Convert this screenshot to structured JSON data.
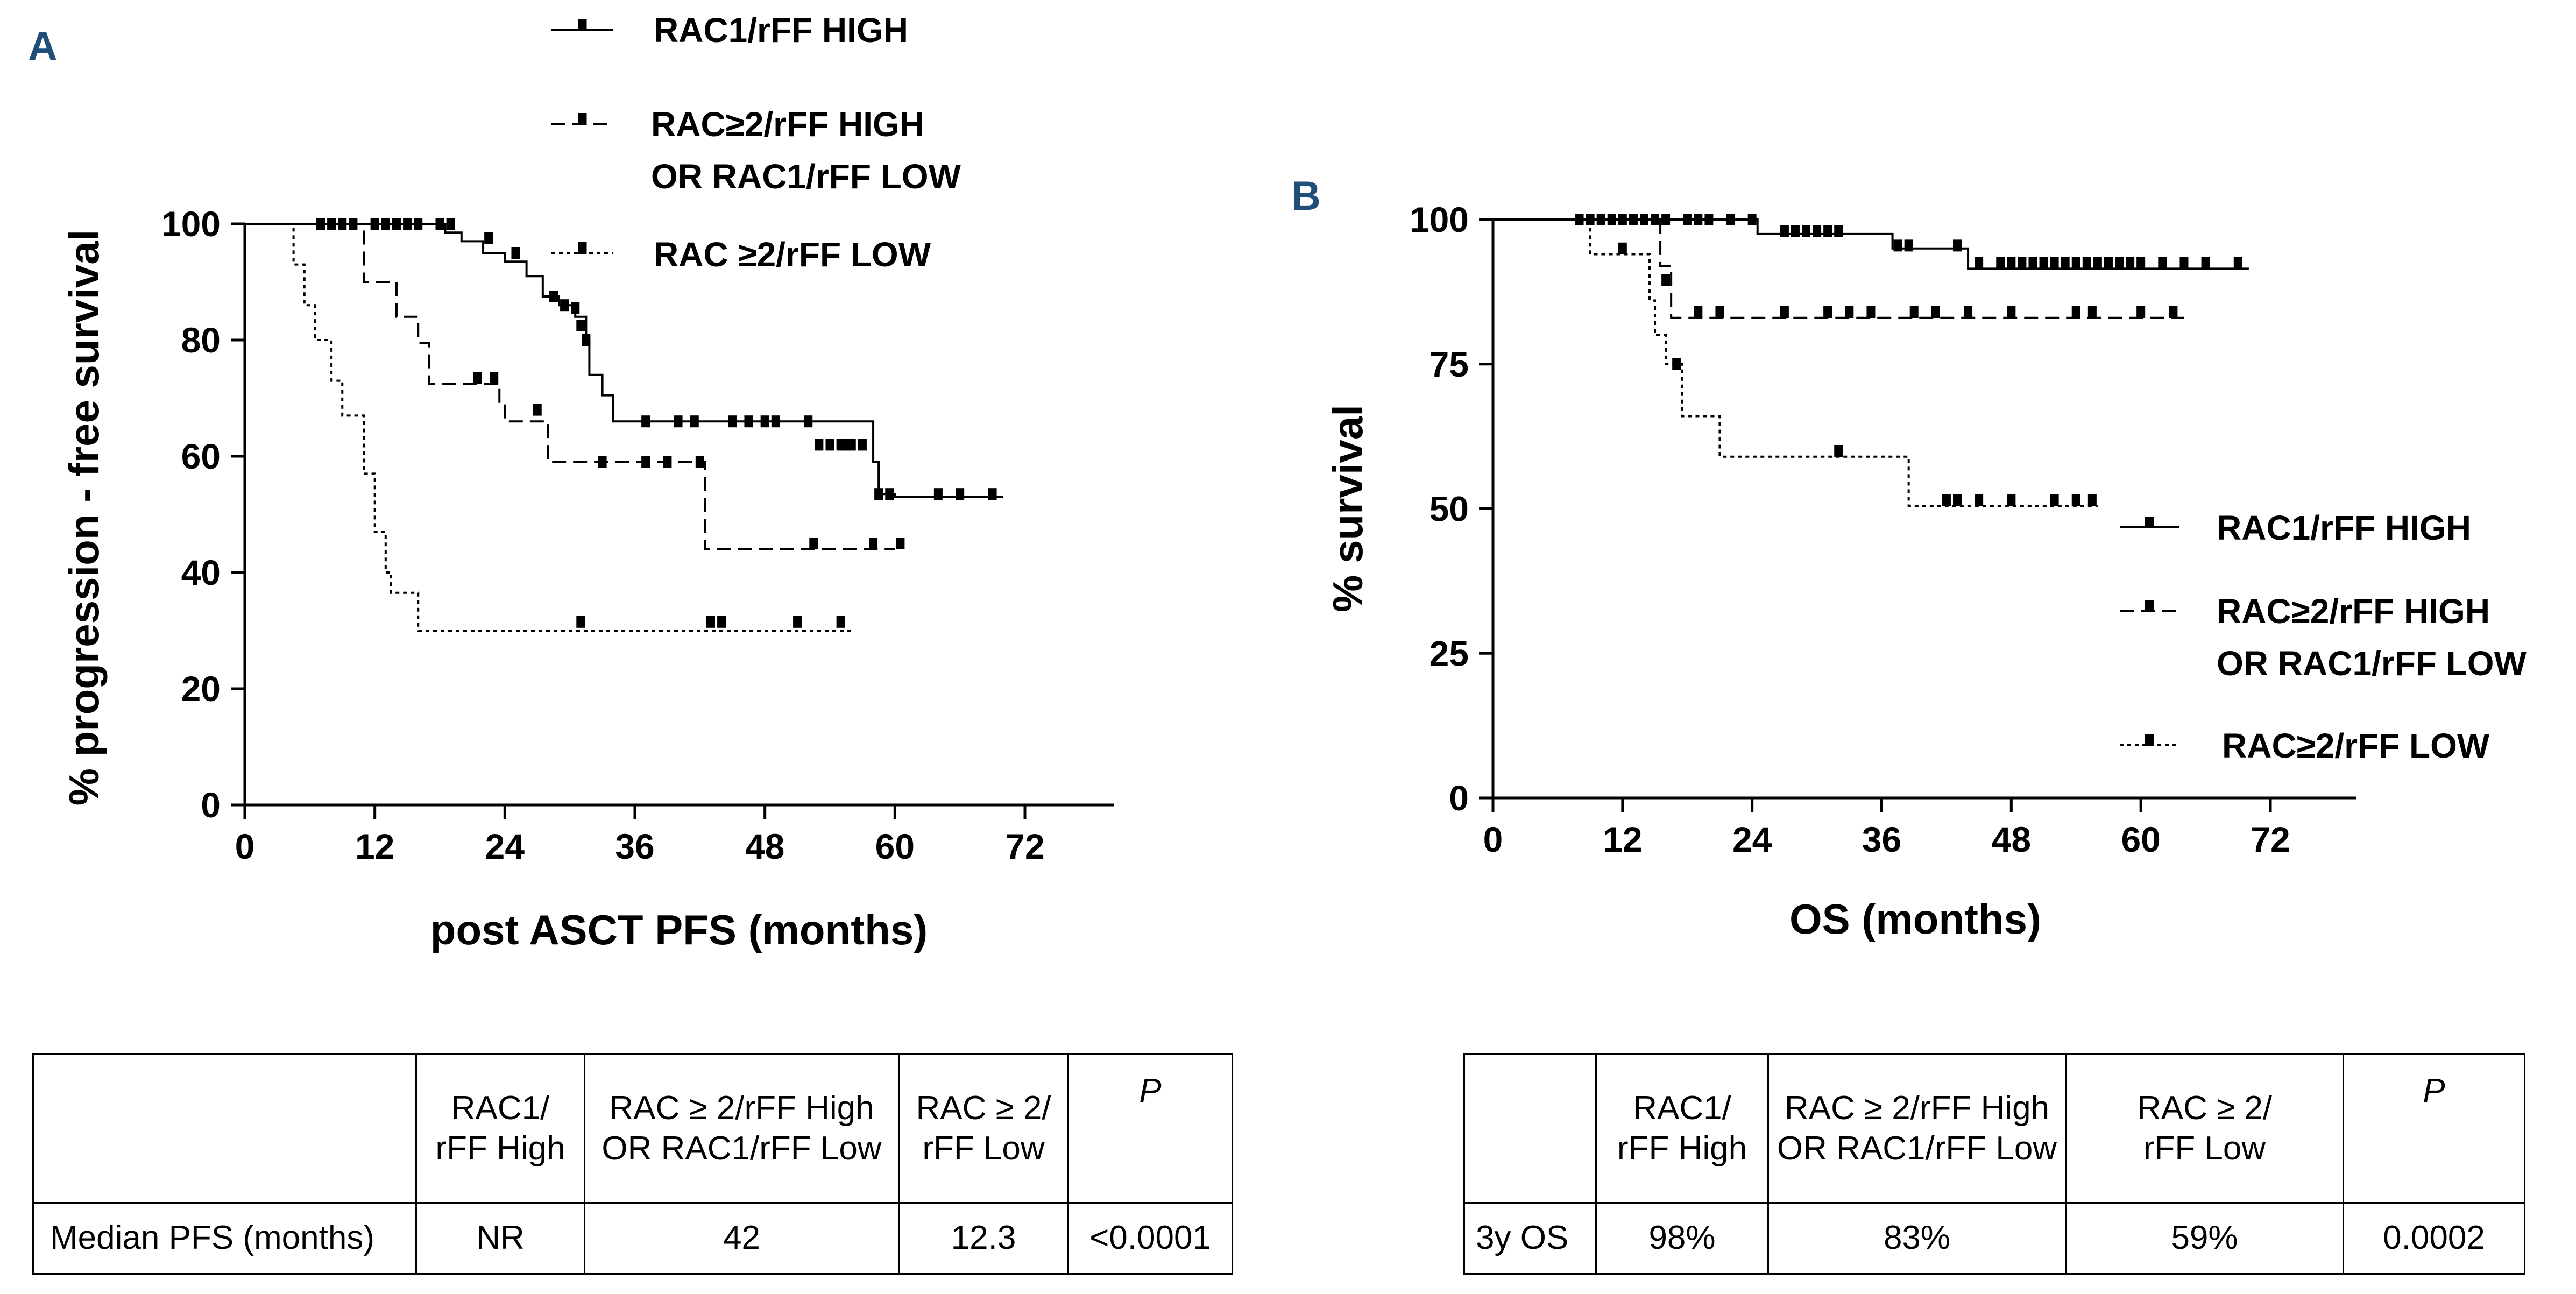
{
  "chart_data": [
    {
      "panel": "A",
      "type": "line",
      "subtype": "kaplan-meier",
      "xlabel": "post ASCT PFS (months)",
      "ylabel": "% progression - free survival",
      "xlim": [
        0,
        80
      ],
      "ylim": [
        0,
        100
      ],
      "xticks": [
        0,
        12,
        24,
        36,
        48,
        60,
        72
      ],
      "yticks": [
        0,
        20,
        40,
        60,
        80,
        100
      ],
      "grid": false,
      "legend_position": "top-center",
      "series": [
        {
          "name": "RAC1/rFF HIGH",
          "dash": "solid",
          "steps": [
            [
              0,
              100
            ],
            [
              18.5,
              98.5
            ],
            [
              20,
              97
            ],
            [
              22,
              95
            ],
            [
              24,
              93.5
            ],
            [
              26,
              91
            ],
            [
              27.5,
              87.5
            ],
            [
              29,
              86
            ],
            [
              30.5,
              84
            ],
            [
              31.5,
              80
            ],
            [
              31.8,
              74
            ],
            [
              33,
              70.5
            ],
            [
              34,
              66
            ],
            [
              58,
              59
            ],
            [
              58.5,
              53.5
            ],
            [
              60,
              53
            ],
            [
              70,
              53
            ]
          ],
          "censored": [
            [
              7,
              100
            ],
            [
              8,
              100
            ],
            [
              9,
              100
            ],
            [
              10,
              100
            ],
            [
              12,
              100
            ],
            [
              13,
              100
            ],
            [
              14,
              100
            ],
            [
              15,
              100
            ],
            [
              16,
              100
            ],
            [
              18,
              100
            ],
            [
              19,
              100
            ],
            [
              22.5,
              97.5
            ],
            [
              25,
              95
            ],
            [
              28.5,
              87.5
            ],
            [
              29.5,
              86
            ],
            [
              30.5,
              85.5
            ],
            [
              31,
              82.5
            ],
            [
              31.5,
              80
            ],
            [
              37,
              66
            ],
            [
              40,
              66
            ],
            [
              41.5,
              66
            ],
            [
              45,
              66
            ],
            [
              46.5,
              66
            ],
            [
              48,
              66
            ],
            [
              49,
              66
            ],
            [
              52,
              66
            ],
            [
              53,
              62
            ],
            [
              54,
              62
            ],
            [
              55,
              62
            ],
            [
              55.5,
              62
            ],
            [
              56,
              62
            ],
            [
              57,
              62
            ],
            [
              58.5,
              53.5
            ],
            [
              59.5,
              53.5
            ],
            [
              64,
              53.5
            ],
            [
              66,
              53.5
            ],
            [
              69,
              53.5
            ]
          ]
        },
        {
          "name": "RAC≥2/rFF HIGH OR RAC1/rFF LOW",
          "dash": "dashed",
          "steps": [
            [
              0,
              100
            ],
            [
              11,
              90
            ],
            [
              14,
              84
            ],
            [
              16,
              79.5
            ],
            [
              17,
              72.5
            ],
            [
              23.5,
              69
            ],
            [
              24,
              66
            ],
            [
              28,
              59
            ],
            [
              42,
              59
            ],
            [
              42.5,
              44
            ],
            [
              60,
              44
            ]
          ],
          "censored": [
            [
              21.5,
              73.5
            ],
            [
              23,
              73.5
            ],
            [
              27,
              68
            ],
            [
              33,
              59
            ],
            [
              37,
              59
            ],
            [
              39,
              59
            ],
            [
              42,
              59
            ],
            [
              52.5,
              45
            ],
            [
              58,
              45
            ],
            [
              60.5,
              45
            ]
          ]
        },
        {
          "name": "RAC ≥2/rFF LOW",
          "dash": "dotted",
          "steps": [
            [
              0,
              100
            ],
            [
              4.5,
              93
            ],
            [
              5.5,
              86
            ],
            [
              6.5,
              80
            ],
            [
              8,
              73
            ],
            [
              9,
              67
            ],
            [
              11,
              57
            ],
            [
              12,
              47
            ],
            [
              13,
              40
            ],
            [
              13.5,
              36.5
            ],
            [
              16,
              30
            ],
            [
              56,
              30
            ]
          ],
          "censored": [
            [
              31,
              31.5
            ],
            [
              43,
              31.5
            ],
            [
              44,
              31.5
            ],
            [
              51,
              31.5
            ],
            [
              55,
              31.5
            ]
          ]
        }
      ]
    },
    {
      "panel": "B",
      "type": "line",
      "subtype": "kaplan-meier",
      "xlabel": "OS (months)",
      "ylabel": "% survival",
      "xlim": [
        0,
        80
      ],
      "ylim": [
        0,
        100
      ],
      "xticks": [
        0,
        12,
        24,
        36,
        48,
        60,
        72
      ],
      "yticks": [
        0,
        25,
        50,
        75,
        100
      ],
      "grid": false,
      "legend_position": "bottom-right",
      "series": [
        {
          "name": "RAC1/rFF HIGH",
          "dash": "solid",
          "steps": [
            [
              0,
              100
            ],
            [
              24.5,
              97.5
            ],
            [
              37,
              95
            ],
            [
              44,
              91.5
            ],
            [
              70,
              91.5
            ]
          ],
          "censored": [
            [
              8,
              100
            ],
            [
              9,
              100
            ],
            [
              10,
              100
            ],
            [
              11,
              100
            ],
            [
              12,
              100
            ],
            [
              13,
              100
            ],
            [
              14,
              100
            ],
            [
              15,
              100
            ],
            [
              16,
              100
            ],
            [
              18,
              100
            ],
            [
              19,
              100
            ],
            [
              20,
              100
            ],
            [
              22,
              100
            ],
            [
              24,
              100
            ],
            [
              27,
              98
            ],
            [
              28,
              98
            ],
            [
              29,
              98
            ],
            [
              30,
              98
            ],
            [
              31,
              98
            ],
            [
              32,
              98
            ],
            [
              37.5,
              95.5
            ],
            [
              38.5,
              95.5
            ],
            [
              43,
              95.5
            ],
            [
              45,
              92.5
            ],
            [
              47,
              92.5
            ],
            [
              48,
              92.5
            ],
            [
              49,
              92.5
            ],
            [
              50,
              92.5
            ],
            [
              51,
              92.5
            ],
            [
              52,
              92.5
            ],
            [
              53,
              92.5
            ],
            [
              54,
              92.5
            ],
            [
              55,
              92.5
            ],
            [
              56,
              92.5
            ],
            [
              57,
              92.5
            ],
            [
              58,
              92.5
            ],
            [
              59,
              92.5
            ],
            [
              60,
              92.5
            ],
            [
              62,
              92.5
            ],
            [
              64,
              92.5
            ],
            [
              66,
              92.5
            ],
            [
              69,
              92.5
            ]
          ]
        },
        {
          "name": "RAC≥2/rFF HIGH OR RAC1/rFF LOW",
          "dash": "dashed",
          "steps": [
            [
              0,
              100
            ],
            [
              15.5,
              92
            ],
            [
              16.5,
              83
            ],
            [
              64,
              83
            ]
          ],
          "censored": [
            [
              16,
              89.5
            ],
            [
              19,
              84
            ],
            [
              21,
              84
            ],
            [
              27,
              84
            ],
            [
              31,
              84
            ],
            [
              33,
              84
            ],
            [
              35,
              84
            ],
            [
              39,
              84
            ],
            [
              41,
              84
            ],
            [
              44,
              84
            ],
            [
              48,
              84
            ],
            [
              54,
              84
            ],
            [
              55.5,
              84
            ],
            [
              60,
              84
            ],
            [
              63,
              84
            ]
          ]
        },
        {
          "name": "RAC≥2/rFF LOW",
          "dash": "dotted",
          "steps": [
            [
              0,
              100
            ],
            [
              9,
              94
            ],
            [
              14.5,
              86
            ],
            [
              15,
              80
            ],
            [
              16,
              75
            ],
            [
              17.5,
              66
            ],
            [
              21,
              59
            ],
            [
              37,
              59
            ],
            [
              38.5,
              50.5
            ],
            [
              56,
              50.5
            ]
          ],
          "censored": [
            [
              12,
              95
            ],
            [
              17,
              75
            ],
            [
              32,
              60
            ],
            [
              42,
              51.5
            ],
            [
              43,
              51.5
            ],
            [
              45,
              51.5
            ],
            [
              48,
              51.5
            ],
            [
              52,
              51.5
            ],
            [
              54,
              51.5
            ],
            [
              55.5,
              51.5
            ]
          ]
        }
      ]
    }
  ],
  "tableA": {
    "headers": [
      [
        "",
        ""
      ],
      [
        "RAC1/",
        "rFF High"
      ],
      [
        "RAC ≥ 2/rFF High",
        "OR RAC1/rFF Low"
      ],
      [
        "RAC ≥ 2/",
        "rFF Low"
      ],
      [
        "P",
        ""
      ]
    ],
    "row": [
      "Median PFS (months)",
      "NR",
      "42",
      "12.3",
      "<0.0001"
    ]
  },
  "tableB": {
    "headers": [
      [
        "",
        ""
      ],
      [
        "RAC1/",
        "rFF High"
      ],
      [
        "RAC ≥ 2/rFF High",
        "OR RAC1/rFF Low"
      ],
      [
        "RAC ≥ 2/",
        "rFF Low"
      ],
      [
        "P",
        ""
      ]
    ],
    "row": [
      "3y OS",
      "98%",
      "83%",
      "59%",
      "0.0002"
    ]
  }
}
